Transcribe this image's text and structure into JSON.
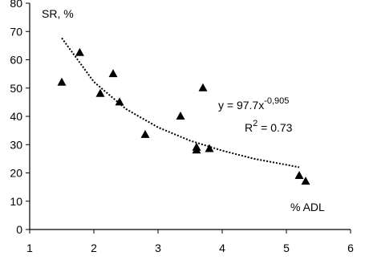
{
  "chart_data": {
    "type": "scatter",
    "y_label": "SR, %",
    "x_label": "% ADL",
    "x": [
      1.5,
      1.78,
      2.1,
      2.3,
      2.4,
      2.8,
      3.35,
      3.6,
      3.6,
      3.7,
      3.8,
      5.2,
      5.3
    ],
    "values": [
      52,
      62.5,
      48,
      55,
      45,
      33.5,
      40,
      29,
      28,
      50,
      28.5,
      19,
      17
    ],
    "color": "#000000",
    "trendline": {
      "x": [
        1.5,
        2,
        2.5,
        3,
        3.5,
        4,
        4.5,
        5.2
      ],
      "values": [
        67.7,
        52.2,
        42.6,
        36.1,
        31.4,
        27.9,
        25.0,
        22.0
      ],
      "equation": "y = 97.7x",
      "exponent": "-0,905",
      "r_label": "R",
      "r_power": "2",
      "r_value": " = 0.73"
    },
    "xlim": [
      1,
      6
    ],
    "ylim": [
      0,
      80
    ],
    "xticks": [
      1,
      2,
      3,
      4,
      5,
      6
    ],
    "yticks": [
      0,
      10,
      20,
      30,
      40,
      50,
      60,
      70,
      80
    ]
  }
}
